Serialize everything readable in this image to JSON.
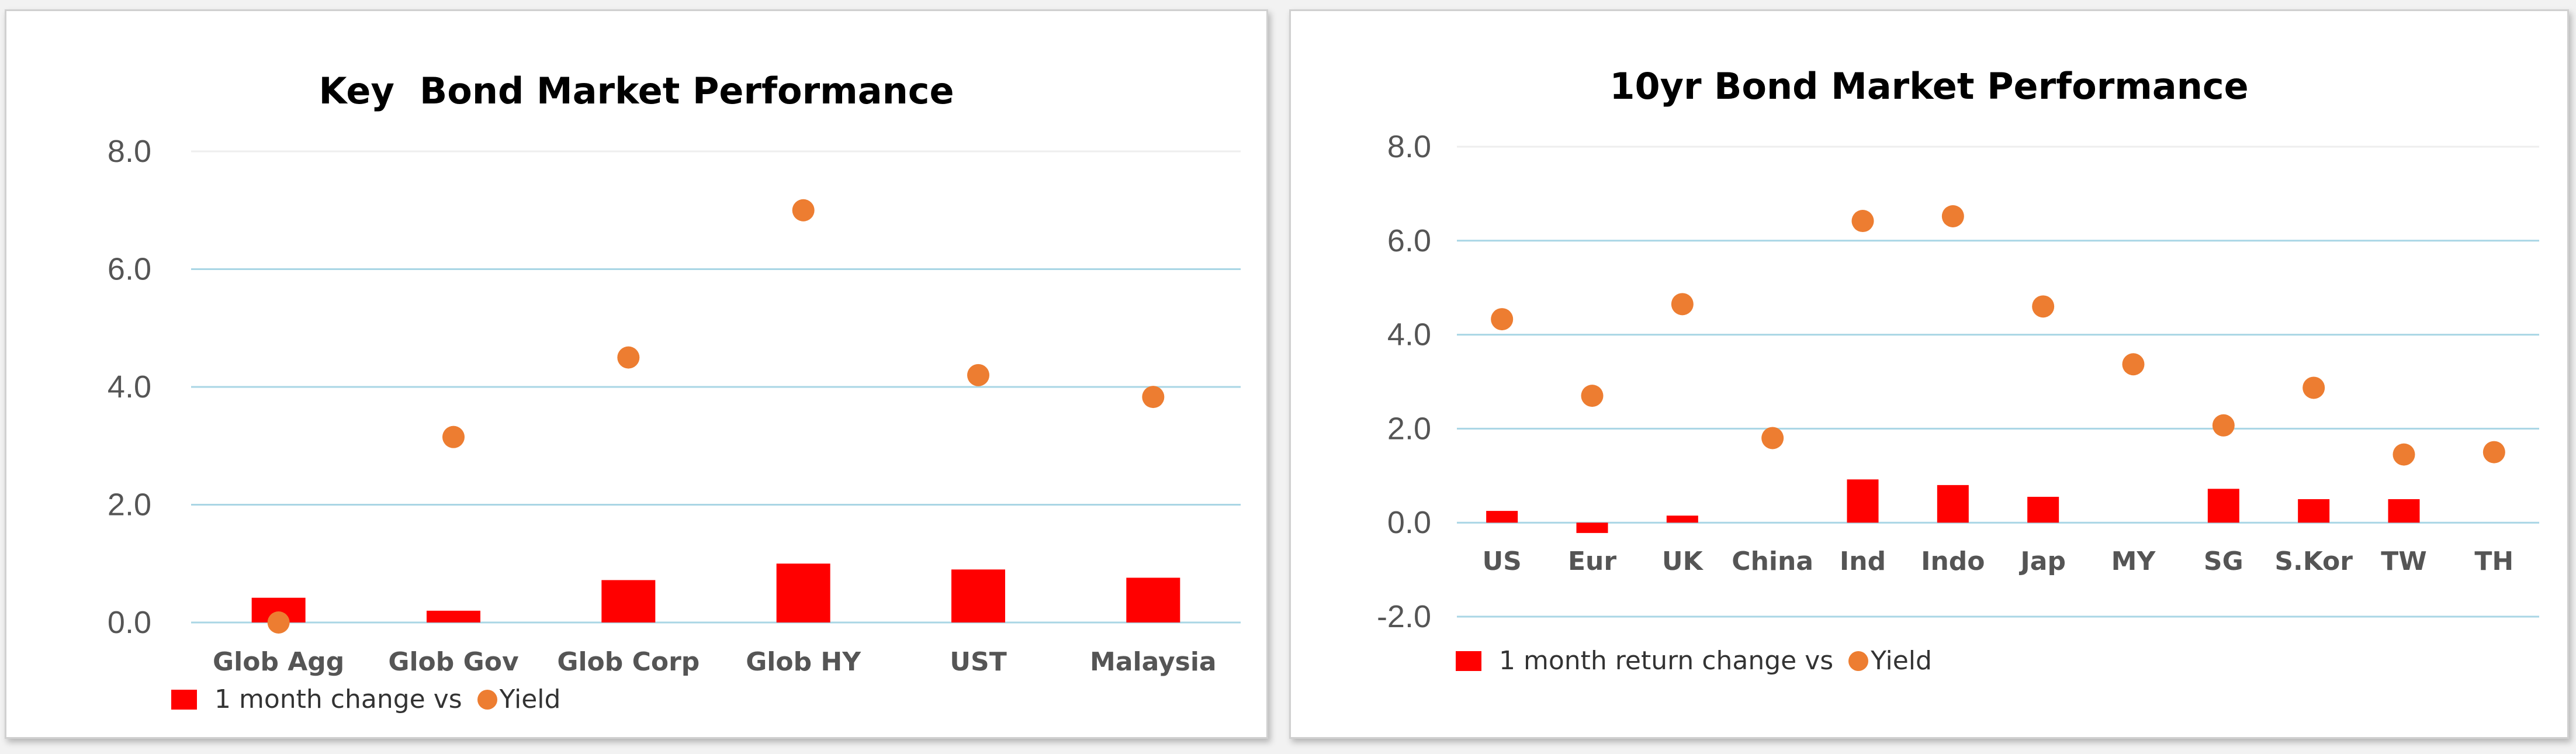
{
  "colors": {
    "bar": "#ff0000",
    "dot": "#ed7d31",
    "grid": "#a9d6e5"
  },
  "chart_data": [
    {
      "type": "bar",
      "title": "Key  Bond Market Performance",
      "categories": [
        "Glob Agg",
        "Glob Gov",
        "Glob Corp",
        "Glob HY",
        "UST",
        "Malaysia"
      ],
      "ylim": [
        0,
        8
      ],
      "yticks": [
        "0.0",
        "2.0",
        "4.0",
        "6.0",
        "8.0"
      ],
      "grid": true,
      "legend_position": "bottom-left",
      "series": [
        {
          "name": "1 month change vs",
          "type": "bar",
          "values": [
            0.42,
            0.2,
            0.72,
            1.0,
            0.9,
            0.76
          ]
        },
        {
          "name": "Yield",
          "type": "scatter",
          "values": [
            0.0,
            3.15,
            4.5,
            7.0,
            4.2,
            3.83
          ]
        }
      ]
    },
    {
      "type": "bar",
      "title": "10yr Bond Market Performance",
      "categories": [
        "US",
        "Eur",
        "UK",
        "China",
        "Ind",
        "Indo",
        "Jap",
        "MY",
        "SG",
        "S.Kor",
        "TW",
        "TH"
      ],
      "ylim": [
        -2,
        8
      ],
      "yticks": [
        "-2.0",
        "0.0",
        "2.0",
        "4.0",
        "6.0",
        "8.0"
      ],
      "grid": true,
      "legend_position": "bottom-left",
      "series": [
        {
          "name": "1 month return change vs",
          "type": "bar",
          "values": [
            0.25,
            -0.22,
            0.15,
            0.0,
            0.92,
            0.8,
            0.55,
            0.0,
            0.72,
            0.5,
            0.5,
            0.0
          ]
        },
        {
          "name": "Yield",
          "type": "scatter",
          "values": [
            4.33,
            2.7,
            4.65,
            1.8,
            6.42,
            6.52,
            4.6,
            3.37,
            2.07,
            2.87,
            1.45,
            1.5
          ]
        }
      ]
    }
  ]
}
